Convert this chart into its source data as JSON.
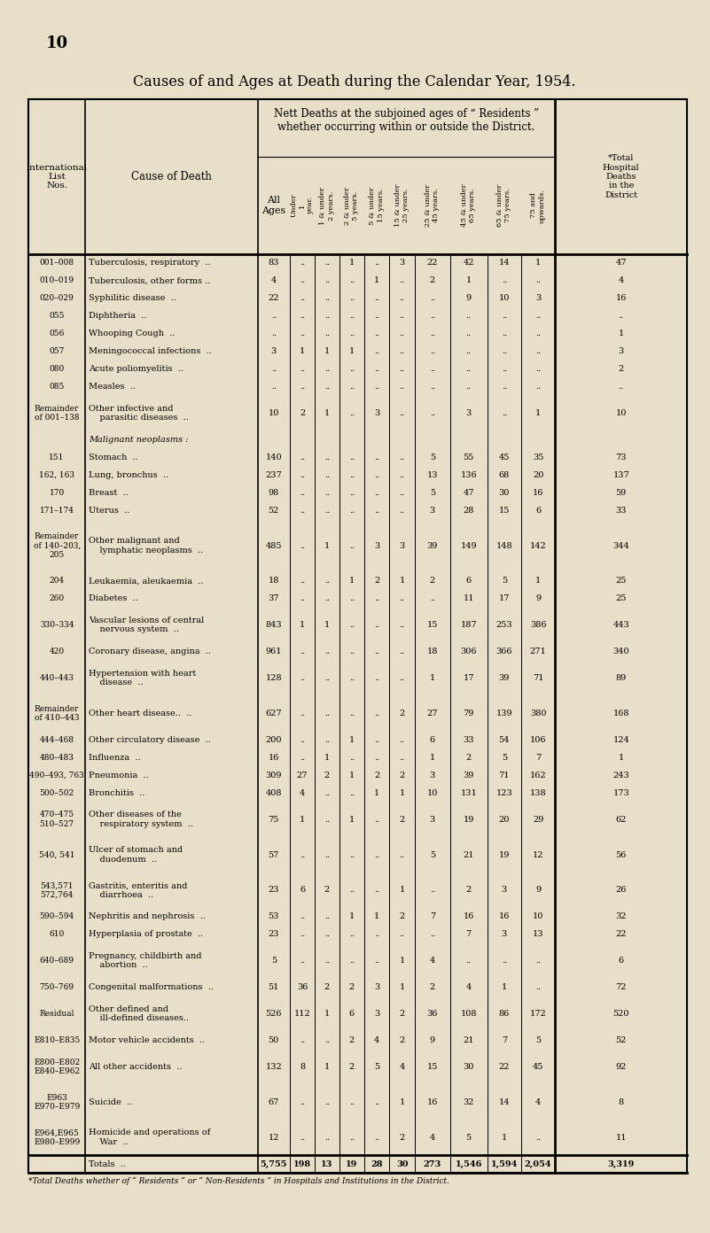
{
  "title": "Causes of and Ages at Death during the Calendar Year, 1954.",
  "page_num": "10",
  "bg_color": "#e8dfc8",
  "rows": [
    [
      "001–008",
      "Tuberculosis, respiratory  ..",
      "83",
      "..",
      "..",
      "1",
      "..",
      "3",
      "22",
      "42",
      "14",
      "1",
      "47"
    ],
    [
      "010–019",
      "Tuberculosis, other forms ..",
      "4",
      "..",
      "..",
      "..",
      "1",
      "..",
      "2",
      "1",
      "..",
      "..",
      "4"
    ],
    [
      "020–029",
      "Syphilitic disease  ..",
      "22",
      "..",
      "..",
      "..",
      "..",
      "..",
      "..",
      "9",
      "10",
      "3",
      "16"
    ],
    [
      "055",
      "Diphtheria  ..",
      "..",
      "..",
      "..",
      "..",
      "..",
      "..",
      "..",
      "..",
      "..",
      "..",
      ".."
    ],
    [
      "056",
      "Whooping Cough  ..",
      "..",
      "..",
      "..",
      "..",
      "..",
      "..",
      "..",
      "..",
      "..",
      "..",
      "1"
    ],
    [
      "057",
      "Meningococcal infections  ..",
      "3",
      "1",
      "1",
      "1",
      "..",
      "..",
      "..",
      "..",
      "..",
      "..",
      "3"
    ],
    [
      "080",
      "Acute poliomyelitis  ..",
      "..",
      "..",
      "..",
      "..",
      "..",
      "..",
      "..",
      "..",
      "..",
      "..",
      "2"
    ],
    [
      "085",
      "Measles  ..",
      "..",
      "..",
      "..",
      "..",
      "..",
      "..",
      "..",
      "..",
      "..",
      "..",
      ".."
    ],
    [
      "Remainder\nof 001–138",
      "Other infective and\n    parasitic diseases  ..",
      "10",
      "2",
      "1",
      "..",
      "3",
      "..",
      "..",
      "3",
      "..",
      "1",
      "10"
    ],
    [
      "",
      "Malignant neoplasms :",
      "",
      "",
      "",
      "",
      "",
      "",
      "",
      "",
      "",
      "",
      ""
    ],
    [
      "151",
      "Stomach  ..",
      "140",
      "..",
      "..",
      "..",
      "..",
      "..",
      "5",
      "55",
      "45",
      "35",
      "73"
    ],
    [
      "162, 163",
      "Lung, bronchus  ..",
      "237",
      "..",
      "..",
      "..",
      "..",
      "..",
      "13",
      "136",
      "68",
      "20",
      "137"
    ],
    [
      "170",
      "Breast  ..",
      "98",
      "..",
      "..",
      "..",
      "..",
      "..",
      "5",
      "47",
      "30",
      "16",
      "59"
    ],
    [
      "171–174",
      "Uterus  ..",
      "52",
      "..",
      "..",
      "..",
      "..",
      "..",
      "3",
      "28",
      "15",
      "6",
      "33"
    ],
    [
      "Remainder\nof 140–203,\n205",
      "Other malignant and\n    lymphatic neoplasms  ..",
      "485",
      "..",
      "1",
      "..",
      "3",
      "3",
      "39",
      "149",
      "148",
      "142",
      "344"
    ],
    [
      "204",
      "Leukaemia, aleukaemia  ..",
      "18",
      "..",
      "..",
      "1",
      "2",
      "1",
      "2",
      "6",
      "5",
      "1",
      "25"
    ],
    [
      "260",
      "Diabetes  ..",
      "37",
      "..",
      "..",
      "..",
      "..",
      "..",
      "..",
      "11",
      "17",
      "9",
      "25"
    ],
    [
      "330–334",
      "Vascular lesions of central\n    nervous system  ..",
      "843",
      "1",
      "1",
      "..",
      "..",
      "..",
      "15",
      "187",
      "253",
      "386",
      "443"
    ],
    [
      "420",
      "Coronary disease, angina  ..",
      "961",
      "..",
      "..",
      "..",
      "..",
      "..",
      "18",
      "306",
      "366",
      "271",
      "340"
    ],
    [
      "440–443",
      "Hypertension with heart\n    disease  ..",
      "128",
      "..",
      "..",
      "..",
      "..",
      "..",
      "1",
      "17",
      "39",
      "71",
      "89"
    ],
    [
      "Remainder\nof 410–443",
      "Other heart disease..  ..",
      "627",
      "..",
      "..",
      "..",
      "..",
      "2",
      "27",
      "79",
      "139",
      "380",
      "168"
    ],
    [
      "444–468",
      "Other circulatory disease  ..",
      "200",
      "..",
      "..",
      "1",
      "..",
      "..",
      "6",
      "33",
      "54",
      "106",
      "124"
    ],
    [
      "480–483",
      "Influenza  ..",
      "16",
      "..",
      "1",
      "..",
      "..",
      "..",
      "1",
      "2",
      "5",
      "7",
      "1"
    ],
    [
      "490–493, 763",
      "Pneumonia  ..",
      "309",
      "27",
      "2",
      "1",
      "2",
      "2",
      "3",
      "39",
      "71",
      "162",
      "243"
    ],
    [
      "500–502",
      "Bronchitis  ..",
      "408",
      "4",
      "..",
      "..",
      "1",
      "1",
      "10",
      "131",
      "123",
      "138",
      "173"
    ],
    [
      "470–475\n510–527",
      "Other diseases of the\n    respiratory system  ..",
      "75",
      "1",
      "..",
      "1",
      "..",
      "2",
      "3",
      "19",
      "20",
      "29",
      "62"
    ],
    [
      "540, 541",
      "Ulcer of stomach and\n    duodenum  ..",
      "57",
      "..",
      "..",
      "..",
      "..",
      "..",
      "5",
      "21",
      "19",
      "12",
      "56"
    ],
    [
      "543,571\n572,764",
      "Gastritis, enteritis and\n    diarrhoea  ..",
      "23",
      "6",
      "2",
      "..",
      "..",
      "1",
      "..",
      "2",
      "3",
      "9",
      "26"
    ],
    [
      "590–594",
      "Nephritis and nephrosis  ..",
      "53",
      "..",
      "..",
      "1",
      "1",
      "2",
      "7",
      "16",
      "16",
      "10",
      "32"
    ],
    [
      "610",
      "Hyperplasia of prostate  ..",
      "23",
      "..",
      "..",
      "..",
      "..",
      "..",
      "..",
      "7",
      "3",
      "13",
      "22"
    ],
    [
      "640–689",
      "Pregnancy, childbirth and\n    abortion  ..",
      "5",
      "..",
      "..",
      "..",
      "..",
      "1",
      "4",
      "..",
      "..",
      "..",
      "6"
    ],
    [
      "750–769",
      "Congenital malformations  ..",
      "51",
      "36",
      "2",
      "2",
      "3",
      "1",
      "2",
      "4",
      "1",
      "..",
      "72"
    ],
    [
      "Residual",
      "Other defined and\n    ill-defined diseases..",
      "526",
      "112",
      "1",
      "6",
      "3",
      "2",
      "36",
      "108",
      "86",
      "172",
      "520"
    ],
    [
      "E810–E835",
      "Motor vehicle accidents  ..",
      "50",
      "..",
      "..",
      "2",
      "4",
      "2",
      "9",
      "21",
      "7",
      "5",
      "52"
    ],
    [
      "E800–E802\nE840–E962",
      "All other accidents  ..",
      "132",
      "8",
      "1",
      "2",
      "5",
      "4",
      "15",
      "30",
      "22",
      "45",
      "92"
    ],
    [
      "E963\nE970–E979",
      "Suicide  ..",
      "67",
      "..",
      "..",
      "..",
      "..",
      "1",
      "16",
      "32",
      "14",
      "4",
      "8"
    ],
    [
      "E964,E965\nE980–E999",
      "Homicide and operations of\n    War  ..",
      "12",
      "..",
      "..",
      "..",
      "..",
      "2",
      "4",
      "5",
      "1",
      "..",
      "11"
    ],
    [
      "",
      "Totals  ..",
      "5,755",
      "198",
      "13",
      "19",
      "28",
      "30",
      "273",
      "1,546",
      "1,594",
      "2,054",
      "3,319"
    ]
  ],
  "footer": "*Total Deaths whether of “ Residents ” or “ Non-Residents ” in Hospitals and Institutions in the District."
}
